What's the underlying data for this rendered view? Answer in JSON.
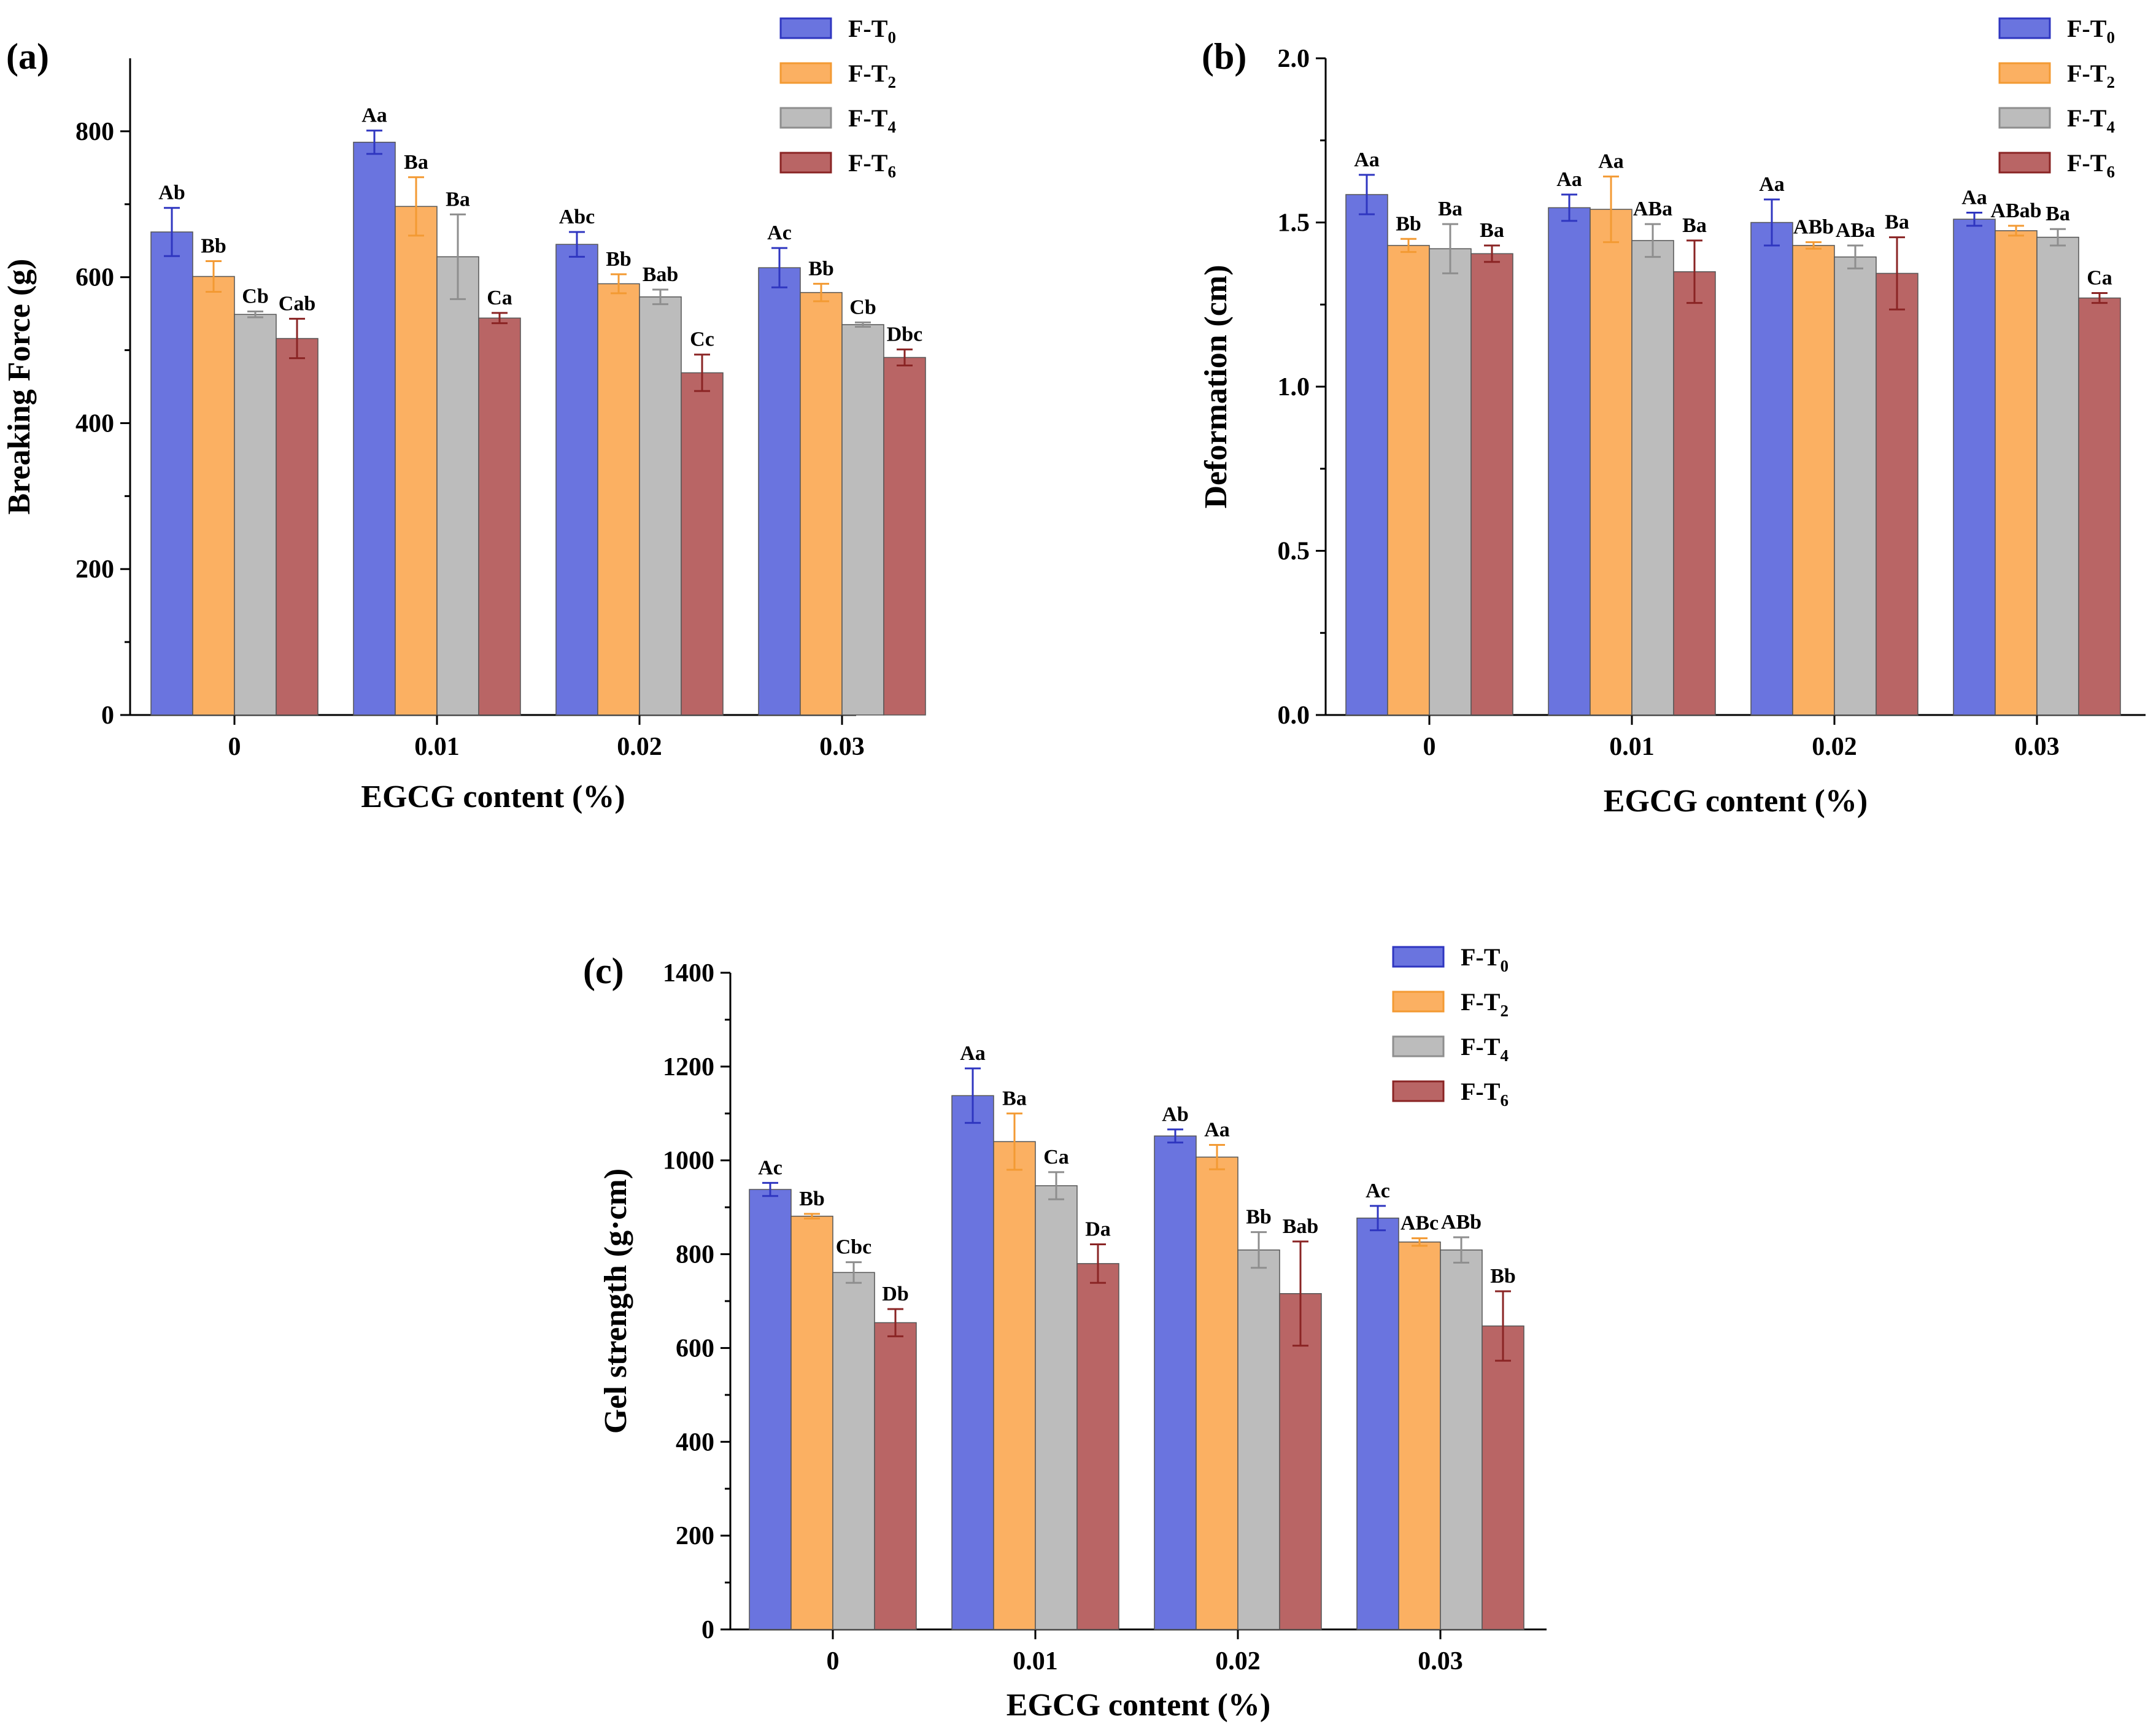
{
  "chart_data": [
    {
      "panel": "(a)",
      "type": "bar",
      "xlabel": "EGCG content (%)",
      "ylabel": "Breaking Force (g)",
      "ylim": [
        0,
        900
      ],
      "yticks": [
        "0",
        "200",
        "400",
        "600",
        "800"
      ],
      "categories": [
        "0",
        "0.01",
        "0.02",
        "0.03"
      ],
      "series": [
        {
          "name": "F-T",
          "sub": "0",
          "values": [
            662,
            785,
            645,
            613
          ],
          "errors": [
            33,
            16,
            17,
            27
          ],
          "labels": [
            "Ab",
            "Aa",
            "Abc",
            "Ac"
          ],
          "color": "#6a74df",
          "edge": "#2f36c0"
        },
        {
          "name": "F-T",
          "sub": "2",
          "values": [
            601,
            697,
            591,
            579
          ],
          "errors": [
            21,
            40,
            13,
            12
          ],
          "labels": [
            "Bb",
            "Ba",
            "Bb",
            "Bb"
          ],
          "color": "#fbb062",
          "edge": "#f39a33"
        },
        {
          "name": "F-T",
          "sub": "4",
          "values": [
            549,
            628,
            573,
            535
          ],
          "errors": [
            4,
            58,
            10,
            3
          ],
          "labels": [
            "Cb",
            "Ba",
            "Bab",
            "Cb"
          ],
          "color": "#bcbcbc",
          "edge": "#8e8e8e"
        },
        {
          "name": "F-T",
          "sub": "6",
          "values": [
            516,
            544,
            469,
            490
          ],
          "errors": [
            27,
            7,
            25,
            11
          ],
          "labels": [
            "Cab",
            "Ca",
            "Cc",
            "Dbc"
          ],
          "color": "#b96565",
          "edge": "#8a2424"
        }
      ]
    },
    {
      "panel": "(b)",
      "type": "bar",
      "xlabel": "EGCG content (%)",
      "ylabel": "Deformation (cm)",
      "ylim": [
        0,
        2.0
      ],
      "yticks": [
        "0.0",
        "0.5",
        "1.0",
        "1.5",
        "2.0"
      ],
      "categories": [
        "0",
        "0.01",
        "0.02",
        "0.03"
      ],
      "series": [
        {
          "name": "F-T",
          "sub": "0",
          "values": [
            1.585,
            1.545,
            1.5,
            1.51
          ],
          "errors": [
            0.06,
            0.04,
            0.07,
            0.02
          ],
          "labels": [
            "Aa",
            "Aa",
            "Aa",
            "Aa"
          ],
          "color": "#6a74df",
          "edge": "#2f36c0"
        },
        {
          "name": "F-T",
          "sub": "2",
          "values": [
            1.43,
            1.54,
            1.43,
            1.475
          ],
          "errors": [
            0.02,
            0.1,
            0.01,
            0.015
          ],
          "labels": [
            "Bb",
            "Aa",
            "ABb",
            "ABab"
          ],
          "color": "#fbb062",
          "edge": "#f39a33"
        },
        {
          "name": "F-T",
          "sub": "4",
          "values": [
            1.42,
            1.445,
            1.395,
            1.455
          ],
          "errors": [
            0.075,
            0.05,
            0.035,
            0.025
          ],
          "labels": [
            "Ba",
            "ABa",
            "ABa",
            "Ba"
          ],
          "color": "#bcbcbc",
          "edge": "#8e8e8e"
        },
        {
          "name": "F-T",
          "sub": "6",
          "values": [
            1.405,
            1.35,
            1.345,
            1.27
          ],
          "errors": [
            0.025,
            0.095,
            0.11,
            0.015
          ],
          "labels": [
            "Ba",
            "Ba",
            "Ba",
            "Ca"
          ],
          "color": "#b96565",
          "edge": "#8a2424"
        }
      ]
    },
    {
      "panel": "(c)",
      "type": "bar",
      "xlabel": "EGCG content (%)",
      "ylabel": "Gel strength (g·cm)",
      "ylim": [
        0,
        1400
      ],
      "yticks": [
        "0",
        "200",
        "400",
        "600",
        "800",
        "1000",
        "1200",
        "1400"
      ],
      "categories": [
        "0",
        "0.01",
        "0.02",
        "0.03"
      ],
      "series": [
        {
          "name": "F-T",
          "sub": "0",
          "values": [
            938,
            1138,
            1052,
            877
          ],
          "errors": [
            14,
            58,
            14,
            26
          ],
          "labels": [
            "Ac",
            "Aa",
            "Ab",
            "Ac"
          ],
          "color": "#6a74df",
          "edge": "#2f36c0"
        },
        {
          "name": "F-T",
          "sub": "2",
          "values": [
            881,
            1040,
            1007,
            826
          ],
          "errors": [
            5,
            60,
            26,
            8
          ],
          "labels": [
            "Bb",
            "Ba",
            "Aa",
            "ABc"
          ],
          "color": "#fbb062",
          "edge": "#f39a33"
        },
        {
          "name": "F-T",
          "sub": "4",
          "values": [
            761,
            946,
            809,
            809
          ],
          "errors": [
            22,
            29,
            38,
            27
          ],
          "labels": [
            "Cbc",
            "Ca",
            "Bb",
            "ABb"
          ],
          "color": "#bcbcbc",
          "edge": "#8e8e8e"
        },
        {
          "name": "F-T",
          "sub": "6",
          "values": [
            654,
            780,
            716,
            647
          ],
          "errors": [
            29,
            41,
            111,
            74
          ],
          "labels": [
            "Db",
            "Da",
            "Bab",
            "Bb"
          ],
          "color": "#b96565",
          "edge": "#8a2424"
        }
      ]
    }
  ]
}
